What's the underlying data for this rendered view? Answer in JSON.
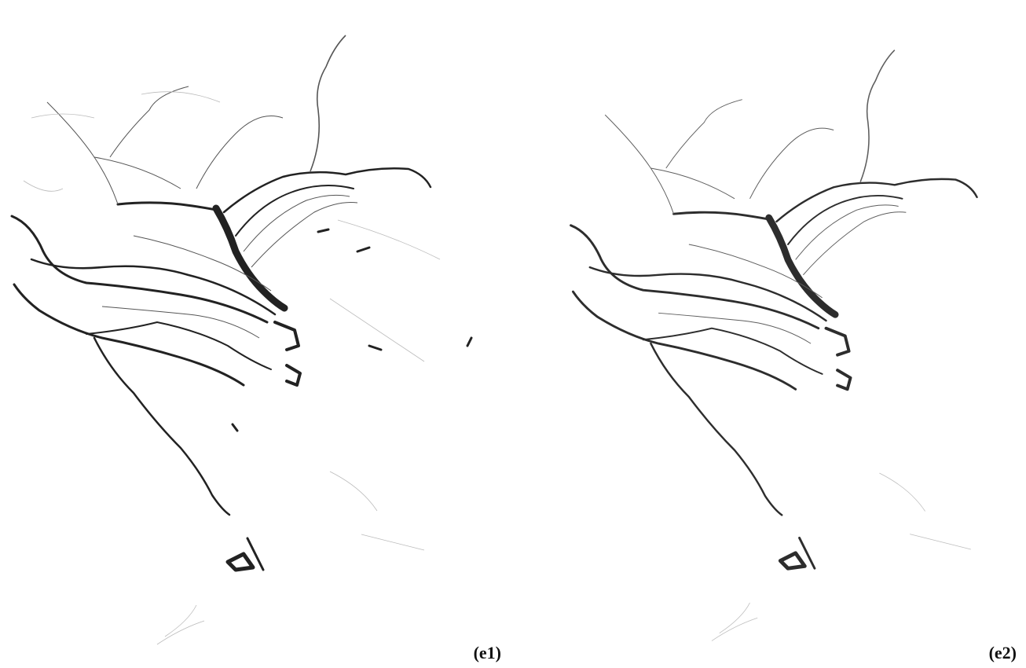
{
  "panels": [
    {
      "label": "(e1)"
    },
    {
      "label": "(e2)"
    }
  ]
}
